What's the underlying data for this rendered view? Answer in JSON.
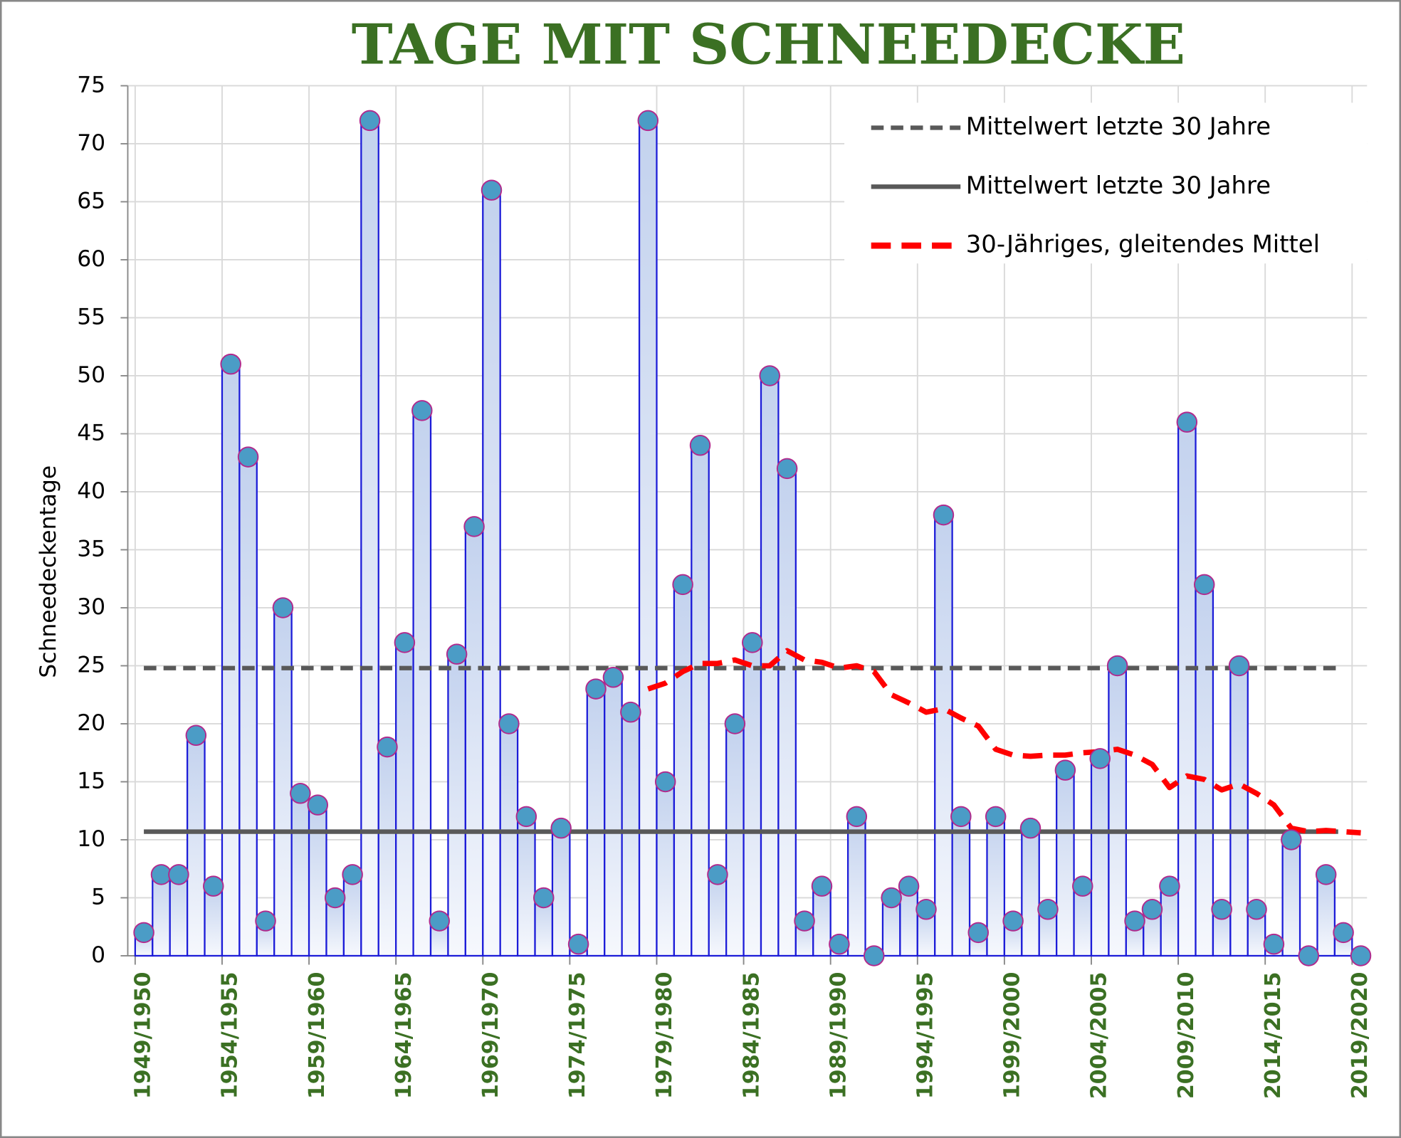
{
  "chart_data": {
    "type": "bar",
    "title": "TAGE MIT SCHNEEDECKE",
    "ylabel": "Schneedeckentage",
    "categories": [
      "1949/1950",
      null,
      null,
      null,
      null,
      "1954/1955",
      null,
      null,
      null,
      null,
      "1959/1960",
      null,
      null,
      null,
      null,
      "1964/1965",
      null,
      null,
      null,
      null,
      "1969/1970",
      null,
      null,
      null,
      null,
      "1974/1975",
      null,
      null,
      null,
      null,
      "1979/1980",
      null,
      null,
      null,
      null,
      "1984/1985",
      null,
      null,
      null,
      null,
      "1989/1990",
      null,
      null,
      null,
      null,
      "1994/1995",
      null,
      null,
      null,
      null,
      "1999/2000",
      null,
      null,
      null,
      null,
      "2004/2005",
      null,
      null,
      null,
      null,
      "2009/2010",
      null,
      null,
      null,
      null,
      "2014/2015",
      null,
      null,
      null,
      null,
      "2019/2020"
    ],
    "values": [
      2,
      7,
      7,
      19,
      6,
      51,
      43,
      3,
      30,
      14,
      13,
      5,
      7,
      72,
      18,
      27,
      47,
      3,
      26,
      37,
      66,
      20,
      12,
      5,
      11,
      1,
      23,
      24,
      21,
      72,
      15,
      32,
      44,
      7,
      20,
      27,
      50,
      42,
      3,
      6,
      1,
      12,
      0,
      5,
      6,
      4,
      38,
      12,
      2,
      12,
      3,
      11,
      4,
      16,
      6,
      17,
      25,
      3,
      4,
      6,
      46,
      32,
      4,
      25,
      4,
      1,
      10,
      0,
      7,
      2,
      0
    ],
    "color": "#1c1cd8",
    "marker_color": "#4b9cc6",
    "marker_edge_color": "#b2288c",
    "series": [
      {
        "name": "30-Jähriges, gleitendes Mittel",
        "color": "#ff0000",
        "style": "dashed",
        "values": [
          null,
          null,
          null,
          null,
          null,
          null,
          null,
          null,
          null,
          null,
          null,
          null,
          null,
          null,
          null,
          null,
          null,
          null,
          null,
          null,
          null,
          null,
          null,
          null,
          null,
          null,
          null,
          null,
          null,
          23,
          23.5,
          24.5,
          25.2,
          25.2,
          25.5,
          25,
          25,
          26.3,
          25.5,
          25.3,
          24.8,
          25,
          24.5,
          22.5,
          21.8,
          21,
          21.3,
          20.5,
          19.8,
          17.8,
          17.3,
          17.2,
          17.3,
          17.3,
          17.5,
          17.6,
          17.8,
          17.3,
          16.5,
          14.5,
          15.5,
          15.2,
          14.3,
          14.8,
          14,
          13,
          11,
          10.7,
          10.8,
          10.7,
          10.6
        ]
      }
    ],
    "reference_lines": [
      {
        "name": "Mittelwert letzte 30 Jahre",
        "value": 24.8,
        "color": "#595959",
        "style": "dashed"
      },
      {
        "name": "Mittelwert letzte 30 Jahre",
        "value": 10.7,
        "color": "#595959",
        "style": "solid"
      }
    ],
    "ylim": [
      0,
      75
    ],
    "yticks": [
      0,
      5,
      10,
      15,
      20,
      25,
      30,
      35,
      40,
      45,
      50,
      55,
      60,
      65,
      70,
      75
    ],
    "grid": true,
    "legend": "upper right",
    "title_color": "#3b7023"
  }
}
